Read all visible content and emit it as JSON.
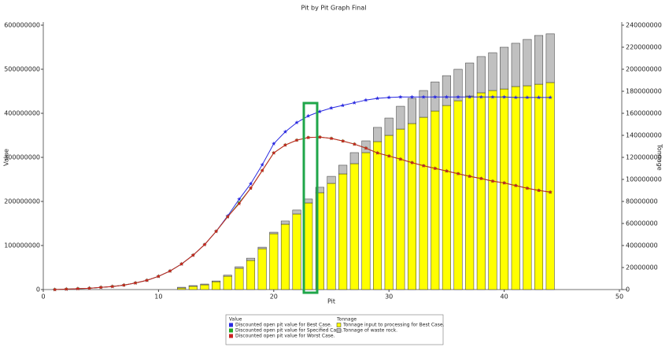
{
  "chart_data": {
    "type": "combo",
    "title": "Pit by Pit Graph Final",
    "x_label": "Pit",
    "y_label": "Value",
    "y2_label": "Tonnage",
    "legend_titles": [
      "Value",
      "Tonnage"
    ],
    "x": [
      1,
      2,
      3,
      4,
      5,
      6,
      7,
      8,
      9,
      10,
      11,
      12,
      13,
      14,
      15,
      16,
      17,
      18,
      19,
      20,
      21,
      22,
      23,
      24,
      25,
      26,
      27,
      28,
      29,
      30,
      31,
      32,
      33,
      34,
      35,
      36,
      37,
      38,
      39,
      40,
      41,
      42,
      43,
      44
    ],
    "xlim": [
      0,
      50
    ],
    "xticks": [
      0,
      10,
      20,
      30,
      40,
      50
    ],
    "ylim": [
      0,
      600000000
    ],
    "yticks": [
      0,
      100000000,
      200000000,
      300000000,
      400000000,
      500000000,
      600000000
    ],
    "y2lim": [
      0,
      240000000
    ],
    "y2ticks": [
      0,
      20000000,
      40000000,
      60000000,
      80000000,
      100000000,
      120000000,
      140000000,
      160000000,
      180000000,
      200000000,
      220000000,
      240000000
    ],
    "series": [
      {
        "name": "Discounted open pit value for Best Case.",
        "type": "line",
        "axis": "y",
        "color": "#2a2ae0",
        "marker": "star",
        "values": [
          0,
          1000000,
          2000000,
          3000000,
          5000000,
          7000000,
          10000000,
          15000000,
          21000000,
          30000000,
          42000000,
          58000000,
          78000000,
          102000000,
          132000000,
          167000000,
          205000000,
          240000000,
          283000000,
          331000000,
          358000000,
          379000000,
          394000000,
          404000000,
          412000000,
          418000000,
          424000000,
          430000000,
          434000000,
          436000000,
          437000000,
          437000000,
          437000000,
          437000000,
          437000000,
          437000000,
          437000000,
          437000000,
          437000000,
          437000000,
          436000000,
          436000000,
          436000000,
          436000000
        ]
      },
      {
        "name": "Discounted open pit value for Specified Case.",
        "type": "line",
        "axis": "y",
        "color": "#22aa22",
        "marker": "square",
        "values": [
          0,
          1000000,
          2000000,
          3000000,
          5000000,
          7000000,
          10000000,
          15000000,
          21000000,
          30000000,
          42000000,
          58000000,
          78000000,
          102000000,
          132000000,
          165000000,
          197000000,
          230000000,
          270000000,
          310000000,
          328000000,
          339000000,
          345000000,
          346000000,
          343000000,
          337000000,
          330000000,
          321000000,
          310000000,
          303000000,
          296000000,
          288000000,
          281000000,
          275000000,
          269000000,
          263000000,
          257000000,
          252000000,
          246000000,
          242000000,
          236000000,
          230000000,
          225000000,
          221000000
        ]
      },
      {
        "name": "Discounted open pit value for Worst Case.",
        "type": "line",
        "axis": "y",
        "color": "#cc2222",
        "marker": "star",
        "values": [
          0,
          1000000,
          2000000,
          3000000,
          5000000,
          7000000,
          10000000,
          15000000,
          21000000,
          30000000,
          42000000,
          58000000,
          78000000,
          102000000,
          132000000,
          165000000,
          195000000,
          230000000,
          270000000,
          310000000,
          328000000,
          339000000,
          345000000,
          346000000,
          343000000,
          337000000,
          330000000,
          321000000,
          310000000,
          303000000,
          296000000,
          288000000,
          281000000,
          275000000,
          269000000,
          263000000,
          257000000,
          252000000,
          246000000,
          242000000,
          236000000,
          230000000,
          225000000,
          221000000
        ]
      },
      {
        "name": "Tonnage input to processing for Best Case.",
        "type": "bar",
        "axis": "y2",
        "color": "#ffff00",
        "values": [
          0,
          0,
          0,
          0,
          0,
          0,
          0,
          0,
          0,
          0,
          0,
          1400000,
          2900000,
          4300000,
          7100000,
          12100000,
          19300000,
          26400000,
          37100000,
          50700000,
          59300000,
          68600000,
          78600000,
          87900000,
          96400000,
          105000000,
          114300000,
          124300000,
          134300000,
          140000000,
          145700000,
          150700000,
          156400000,
          162100000,
          167100000,
          171400000,
          175700000,
          178600000,
          180700000,
          182100000,
          184300000,
          185000000,
          186400000,
          187900000
        ]
      },
      {
        "name": "Tonnage of waste rock.",
        "type": "bar",
        "axis": "y2",
        "color": "#c0c0c0",
        "values": [
          0,
          0,
          0,
          0,
          0,
          0,
          0,
          0,
          0,
          0,
          0,
          700000,
          700000,
          700000,
          700000,
          1000000,
          1400000,
          2100000,
          1400000,
          1400000,
          2900000,
          3600000,
          3600000,
          5000000,
          6400000,
          7900000,
          10000000,
          10700000,
          12900000,
          15700000,
          20700000,
          22900000,
          24300000,
          26400000,
          27100000,
          28600000,
          30000000,
          32900000,
          34300000,
          37900000,
          39300000,
          42100000,
          44300000,
          44300000
        ]
      }
    ]
  }
}
